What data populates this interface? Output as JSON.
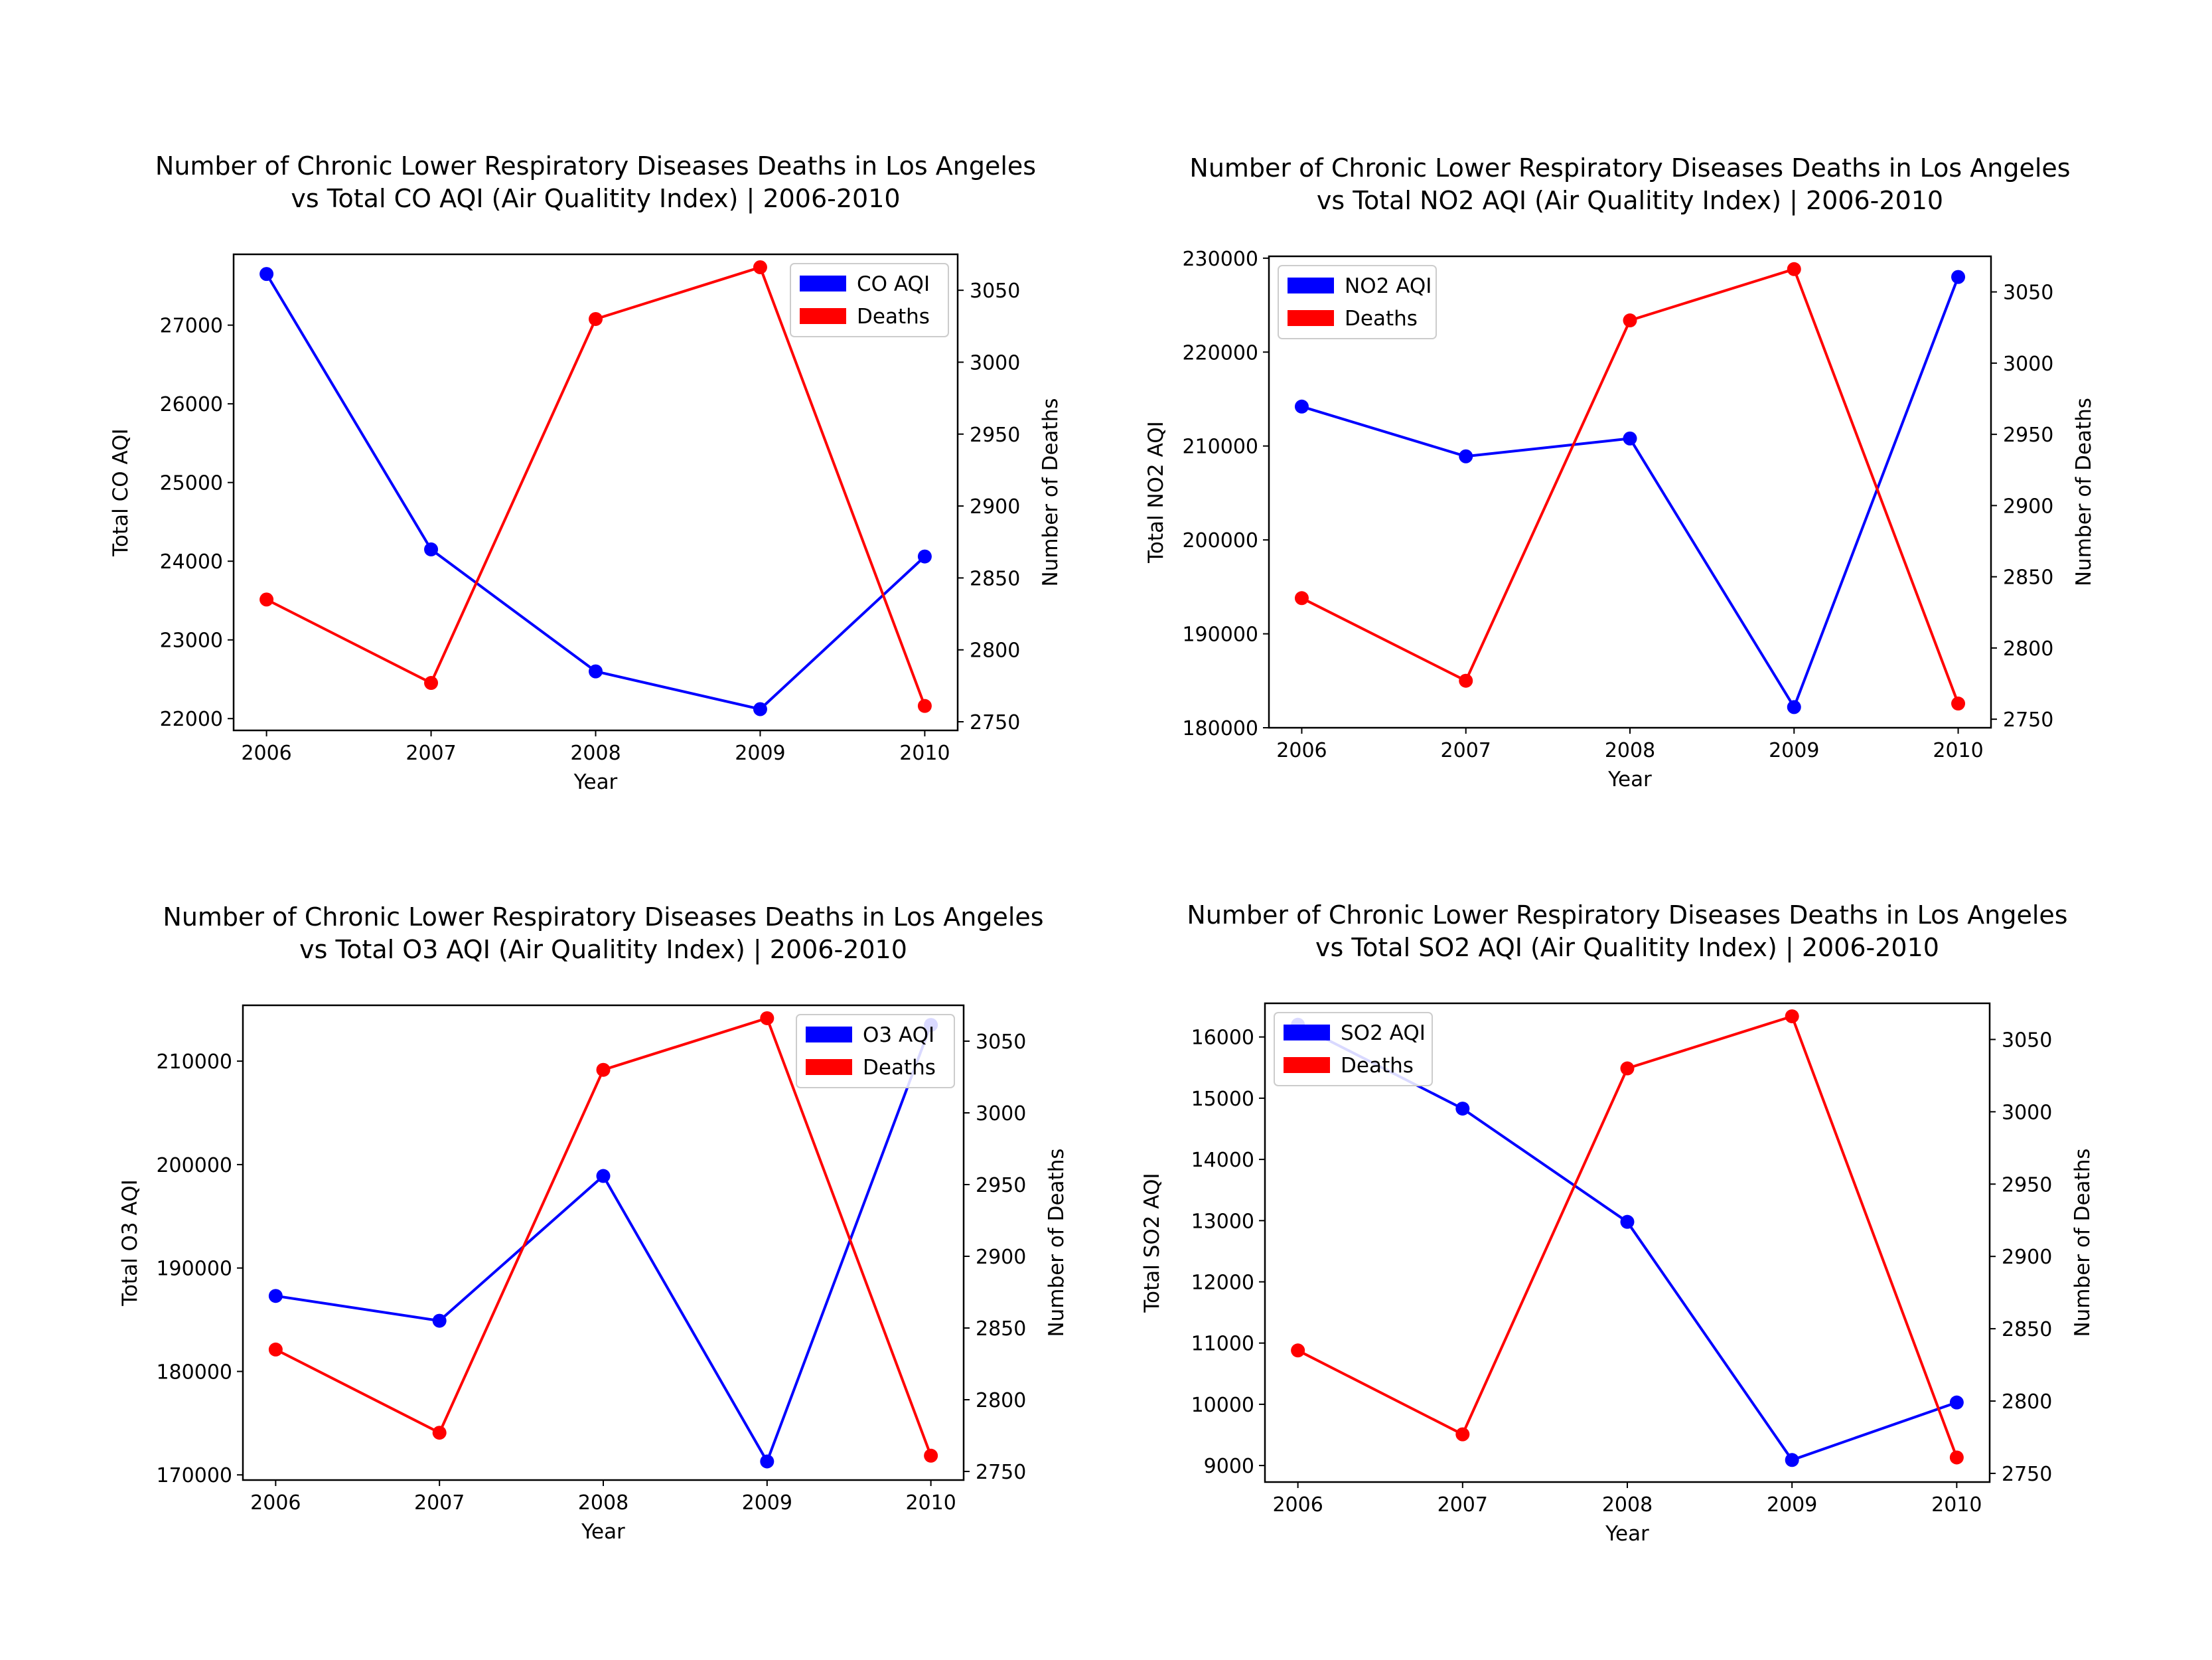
{
  "chart_data": [
    {
      "type": "line",
      "title": "Number of Chronic Lower Respiratory Diseases Deaths in Los Angeles\nvs Total CO AQI (Air Qualitity Index) | 2006-2010",
      "xlabel": "Year",
      "ylabel": "Total CO AQI",
      "y2label": "Number of Deaths",
      "x": [
        2006,
        2007,
        2008,
        2009,
        2010
      ],
      "xlim": [
        2005.8,
        2010.2
      ],
      "ylim": [
        21850,
        27900
      ],
      "y2lim": [
        2744,
        3075
      ],
      "yticks": [
        22000,
        23000,
        24000,
        25000,
        26000,
        27000
      ],
      "y2ticks": [
        2750,
        2800,
        2850,
        2900,
        2950,
        3000,
        3050
      ],
      "legend_position": "upper-right",
      "series": [
        {
          "name": "CO AQI",
          "axis": "left",
          "color": "#0000ff",
          "values": [
            27650,
            24150,
            22600,
            22120,
            24060
          ]
        },
        {
          "name": "Deaths",
          "axis": "right",
          "color": "#ff0000",
          "values": [
            2835,
            2777,
            3030,
            3066,
            2761
          ]
        }
      ]
    },
    {
      "type": "line",
      "title": "Number of Chronic Lower Respiratory Diseases Deaths in Los Angeles\nvs Total NO2 AQI (Air Qualitity Index) | 2006-2010",
      "xlabel": "Year",
      "ylabel": "Total NO2 AQI",
      "y2label": "Number of Deaths",
      "x": [
        2006,
        2007,
        2008,
        2009,
        2010
      ],
      "xlim": [
        2005.8,
        2010.2
      ],
      "ylim": [
        180000,
        230200
      ],
      "y2lim": [
        2744,
        3075
      ],
      "yticks": [
        180000,
        190000,
        200000,
        210000,
        220000,
        230000
      ],
      "y2ticks": [
        2750,
        2800,
        2850,
        2900,
        2950,
        3000,
        3050
      ],
      "legend_position": "upper-left",
      "series": [
        {
          "name": "NO2 AQI",
          "axis": "left",
          "color": "#0000ff",
          "values": [
            214200,
            208900,
            210800,
            182200,
            228000
          ]
        },
        {
          "name": "Deaths",
          "axis": "right",
          "color": "#ff0000",
          "values": [
            2835,
            2777,
            3030,
            3066,
            2761
          ]
        }
      ]
    },
    {
      "type": "line",
      "title": "Number of Chronic Lower Respiratory Diseases Deaths in Los Angeles\nvs Total O3 AQI (Air Qualitity Index) | 2006-2010",
      "xlabel": "Year",
      "ylabel": "Total O3 AQI",
      "y2label": "Number of Deaths",
      "x": [
        2006,
        2007,
        2008,
        2009,
        2010
      ],
      "xlim": [
        2005.8,
        2010.2
      ],
      "ylim": [
        169500,
        215400
      ],
      "y2lim": [
        2744,
        3075
      ],
      "yticks": [
        170000,
        180000,
        190000,
        200000,
        210000
      ],
      "y2ticks": [
        2750,
        2800,
        2850,
        2900,
        2950,
        3000,
        3050
      ],
      "legend_position": "upper-right",
      "series": [
        {
          "name": "O3 AQI",
          "axis": "left",
          "color": "#0000ff",
          "values": [
            187300,
            184900,
            198900,
            171300,
            213500
          ]
        },
        {
          "name": "Deaths",
          "axis": "right",
          "color": "#ff0000",
          "values": [
            2835,
            2777,
            3030,
            3066,
            2761
          ]
        }
      ]
    },
    {
      "type": "line",
      "title": "Number of Chronic Lower Respiratory Diseases Deaths in Los Angeles\nvs Total SO2 AQI (Air Qualitity Index) | 2006-2010",
      "xlabel": "Year",
      "ylabel": "Total SO2 AQI",
      "y2label": "Number of Deaths",
      "x": [
        2006,
        2007,
        2008,
        2009,
        2010
      ],
      "xlim": [
        2005.8,
        2010.2
      ],
      "ylim": [
        8730,
        16550
      ],
      "y2lim": [
        2744,
        3075
      ],
      "yticks": [
        9000,
        10000,
        11000,
        12000,
        13000,
        14000,
        15000,
        16000
      ],
      "y2ticks": [
        2750,
        2800,
        2850,
        2900,
        2950,
        3000,
        3050
      ],
      "legend_position": "upper-left",
      "series": [
        {
          "name": "SO2 AQI",
          "axis": "left",
          "color": "#0000ff",
          "values": [
            16200,
            14830,
            12980,
            9090,
            10030
          ]
        },
        {
          "name": "Deaths",
          "axis": "right",
          "color": "#ff0000",
          "values": [
            2835,
            2777,
            3030,
            3066,
            2761
          ]
        }
      ]
    }
  ]
}
